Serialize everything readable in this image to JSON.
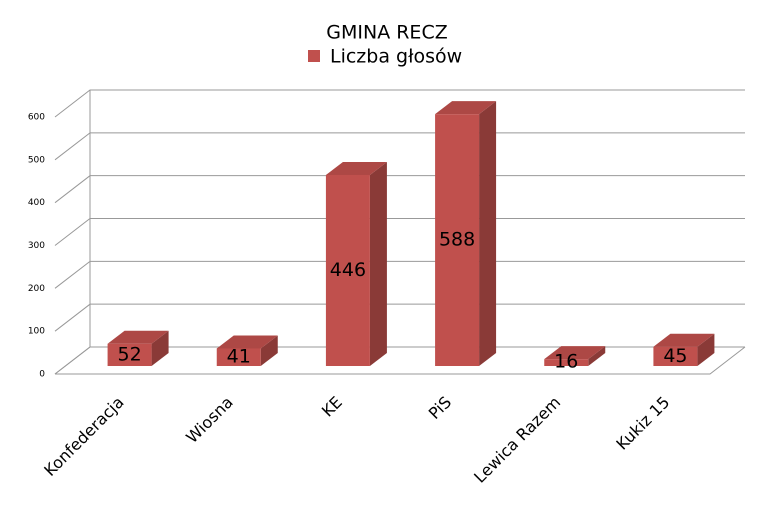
{
  "chart_data": {
    "type": "bar",
    "title": "GMINA RECZ",
    "categories": [
      "Konfederacja",
      "Wiosna",
      "KE",
      "PiS",
      "Lewica Razem",
      "Kukiz 15"
    ],
    "series": [
      {
        "name": "Liczba głosów",
        "color": "#c0504d",
        "values": [
          52,
          41,
          446,
          588,
          16,
          45
        ]
      }
    ],
    "ylim": [
      0,
      600
    ],
    "yticks": [
      0,
      100,
      200,
      300,
      400,
      500,
      600
    ],
    "grid": true
  }
}
